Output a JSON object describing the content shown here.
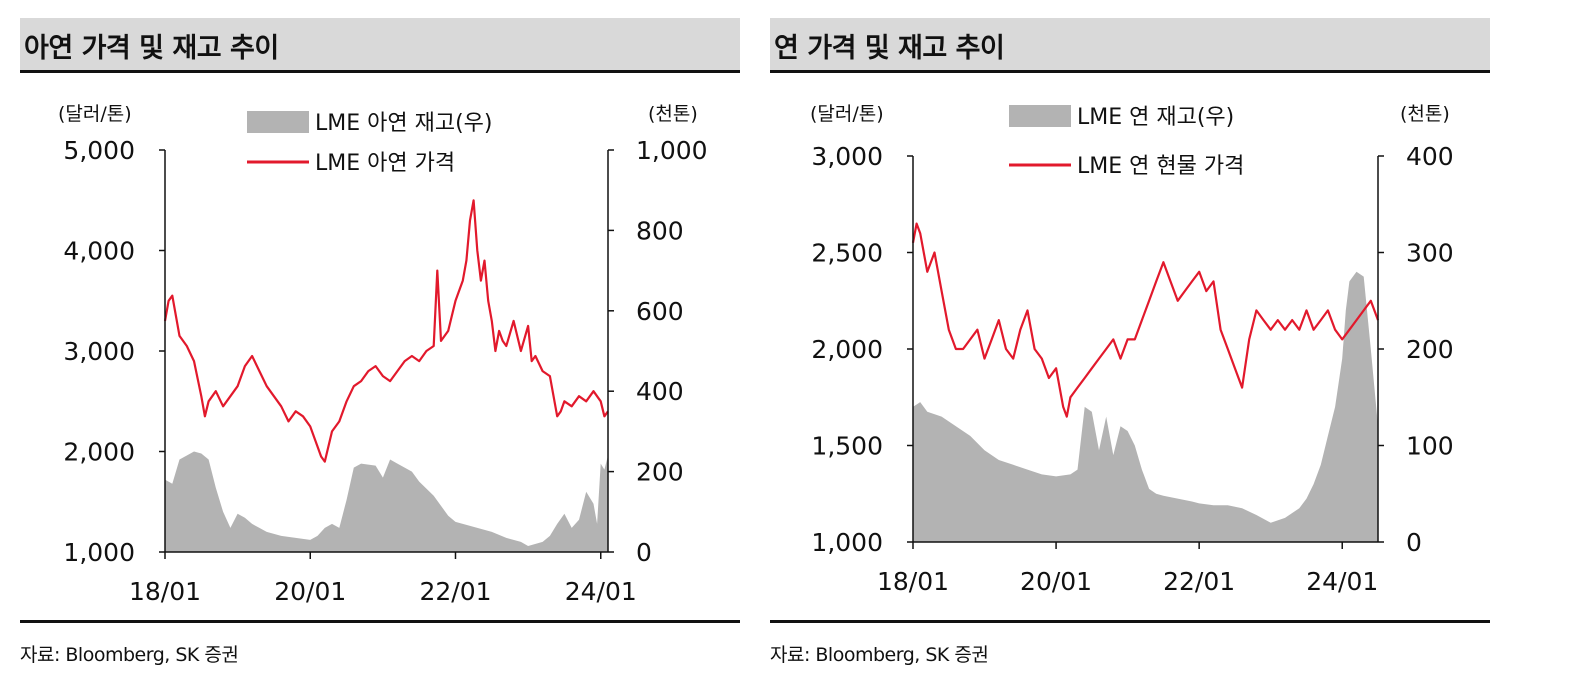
{
  "charts": [
    {
      "title": "아연 가격 및 재고 추이",
      "source": "자료: Bloomberg, SK 증권",
      "left_unit": "(달러/톤)",
      "right_unit": "(천톤)",
      "legend": {
        "stock": "LME 아연 재고(우)",
        "price": "LME 아연 가격"
      }
    },
    {
      "title": "연 가격 및 재고 추이",
      "source": "자료: Bloomberg, SK 증권",
      "left_unit": "(달러/톤)",
      "right_unit": "(천톤)",
      "legend": {
        "stock": "LME 연 재고(우)",
        "price": "LME 연 현물 가격"
      }
    }
  ],
  "colors": {
    "price_line": "#e2192c",
    "stock_area": "#b3b3b3",
    "axis": "#111111"
  },
  "chart_data": [
    {
      "type": "area",
      "title": "아연 가격 및 재고 추이",
      "x_ticks": [
        "18/01",
        "20/01",
        "22/01",
        "24/01"
      ],
      "x_tick_years": [
        2018,
        2020,
        2022,
        2024
      ],
      "x_range": [
        2018.0,
        2024.1
      ],
      "y_left": {
        "label": "(달러/톤)",
        "range": [
          1000,
          5000
        ],
        "ticks": [
          1000,
          2000,
          3000,
          4000,
          5000
        ],
        "tick_labels": [
          "1,000",
          "2,000",
          "3,000",
          "4,000",
          "5,000"
        ]
      },
      "y_right": {
        "label": "(천톤)",
        "range": [
          0,
          1000
        ],
        "ticks": [
          0,
          200,
          400,
          600,
          800,
          1000
        ],
        "tick_labels": [
          "0",
          "200",
          "400",
          "600",
          "800",
          "1,000"
        ]
      },
      "series": [
        {
          "name": "LME 아연 재고(우)",
          "type": "area",
          "axis": "right",
          "x": [
            2018.0,
            2018.1,
            2018.2,
            2018.3,
            2018.4,
            2018.5,
            2018.6,
            2018.7,
            2018.8,
            2018.9,
            2019.0,
            2019.1,
            2019.2,
            2019.3,
            2019.4,
            2019.6,
            2019.8,
            2020.0,
            2020.1,
            2020.2,
            2020.3,
            2020.4,
            2020.5,
            2020.6,
            2020.7,
            2020.9,
            2021.0,
            2021.1,
            2021.2,
            2021.4,
            2021.5,
            2021.7,
            2021.9,
            2022.0,
            2022.1,
            2022.3,
            2022.5,
            2022.7,
            2022.9,
            2023.0,
            2023.2,
            2023.3,
            2023.4,
            2023.5,
            2023.6,
            2023.7,
            2023.8,
            2023.9,
            2023.95,
            2024.0,
            2024.05,
            2024.1
          ],
          "values": [
            180,
            170,
            230,
            240,
            250,
            245,
            230,
            160,
            100,
            60,
            95,
            85,
            70,
            60,
            50,
            40,
            35,
            30,
            40,
            60,
            70,
            60,
            130,
            210,
            220,
            215,
            185,
            230,
            220,
            200,
            175,
            140,
            90,
            75,
            70,
            60,
            50,
            35,
            25,
            15,
            25,
            40,
            70,
            95,
            60,
            80,
            150,
            120,
            70,
            220,
            205,
            240
          ]
        },
        {
          "name": "LME 아연 가격",
          "type": "line",
          "axis": "left",
          "x": [
            2018.0,
            2018.05,
            2018.1,
            2018.15,
            2018.2,
            2018.3,
            2018.4,
            2018.5,
            2018.55,
            2018.6,
            2018.7,
            2018.8,
            2018.9,
            2019.0,
            2019.1,
            2019.2,
            2019.3,
            2019.4,
            2019.5,
            2019.6,
            2019.7,
            2019.8,
            2019.9,
            2020.0,
            2020.1,
            2020.15,
            2020.2,
            2020.25,
            2020.3,
            2020.4,
            2020.5,
            2020.6,
            2020.7,
            2020.8,
            2020.9,
            2021.0,
            2021.1,
            2021.2,
            2021.3,
            2021.4,
            2021.5,
            2021.6,
            2021.7,
            2021.75,
            2021.8,
            2021.9,
            2022.0,
            2022.1,
            2022.15,
            2022.2,
            2022.25,
            2022.3,
            2022.35,
            2022.4,
            2022.45,
            2022.5,
            2022.55,
            2022.6,
            2022.65,
            2022.7,
            2022.8,
            2022.9,
            2023.0,
            2023.05,
            2023.1,
            2023.2,
            2023.3,
            2023.4,
            2023.45,
            2023.5,
            2023.6,
            2023.7,
            2023.8,
            2023.9,
            2024.0,
            2024.05,
            2024.1
          ],
          "values": [
            3300,
            3500,
            3550,
            3350,
            3150,
            3050,
            2900,
            2550,
            2350,
            2500,
            2600,
            2450,
            2550,
            2650,
            2850,
            2950,
            2800,
            2650,
            2550,
            2450,
            2300,
            2400,
            2350,
            2250,
            2050,
            1950,
            1900,
            2050,
            2200,
            2300,
            2500,
            2650,
            2700,
            2800,
            2850,
            2750,
            2700,
            2800,
            2900,
            2950,
            2900,
            3000,
            3050,
            3800,
            3100,
            3200,
            3500,
            3700,
            3900,
            4300,
            4500,
            4000,
            3700,
            3900,
            3500,
            3300,
            3000,
            3200,
            3100,
            3050,
            3300,
            3000,
            3250,
            2900,
            2950,
            2800,
            2750,
            2350,
            2400,
            2500,
            2450,
            2550,
            2500,
            2600,
            2500,
            2350,
            2400
          ]
        }
      ]
    },
    {
      "type": "area",
      "title": "연 가격 및 재고 추이",
      "x_ticks": [
        "18/01",
        "20/01",
        "22/01",
        "24/01"
      ],
      "x_tick_years": [
        2018,
        2020,
        2022,
        2024
      ],
      "x_range": [
        2018.0,
        2024.5
      ],
      "y_left": {
        "label": "(달러/톤)",
        "range": [
          1000,
          3000
        ],
        "ticks": [
          1000,
          1500,
          2000,
          2500,
          3000
        ],
        "tick_labels": [
          "1,000",
          "1,500",
          "2,000",
          "2,500",
          "3,000"
        ]
      },
      "y_right": {
        "label": "(천톤)",
        "range": [
          0,
          400
        ],
        "ticks": [
          0,
          100,
          200,
          300,
          400
        ],
        "tick_labels": [
          "0",
          "100",
          "200",
          "300",
          "400"
        ]
      },
      "series": [
        {
          "name": "LME 연 재고(우)",
          "type": "area",
          "axis": "right",
          "x": [
            2018.0,
            2018.1,
            2018.2,
            2018.4,
            2018.6,
            2018.8,
            2019.0,
            2019.2,
            2019.4,
            2019.6,
            2019.8,
            2020.0,
            2020.2,
            2020.3,
            2020.4,
            2020.5,
            2020.6,
            2020.7,
            2020.8,
            2020.9,
            2021.0,
            2021.1,
            2021.2,
            2021.3,
            2021.4,
            2021.5,
            2021.7,
            2021.9,
            2022.0,
            2022.2,
            2022.4,
            2022.6,
            2022.8,
            2023.0,
            2023.2,
            2023.4,
            2023.5,
            2023.6,
            2023.7,
            2023.8,
            2023.9,
            2024.0,
            2024.05,
            2024.1,
            2024.2,
            2024.3,
            2024.4,
            2024.5
          ],
          "values": [
            140,
            145,
            135,
            130,
            120,
            110,
            95,
            85,
            80,
            75,
            70,
            68,
            70,
            75,
            140,
            135,
            95,
            130,
            90,
            120,
            115,
            100,
            75,
            55,
            50,
            48,
            45,
            42,
            40,
            38,
            38,
            35,
            28,
            20,
            25,
            35,
            45,
            60,
            80,
            110,
            140,
            190,
            240,
            270,
            280,
            275,
            200,
            120
          ]
        },
        {
          "name": "LME 연 현물 가격",
          "type": "line",
          "axis": "left",
          "x": [
            2018.0,
            2018.05,
            2018.1,
            2018.2,
            2018.3,
            2018.4,
            2018.5,
            2018.6,
            2018.7,
            2018.8,
            2018.9,
            2019.0,
            2019.1,
            2019.2,
            2019.3,
            2019.4,
            2019.5,
            2019.6,
            2019.7,
            2019.8,
            2019.9,
            2020.0,
            2020.1,
            2020.15,
            2020.2,
            2020.3,
            2020.4,
            2020.5,
            2020.6,
            2020.7,
            2020.8,
            2020.9,
            2021.0,
            2021.1,
            2021.2,
            2021.3,
            2021.4,
            2021.5,
            2021.6,
            2021.7,
            2021.8,
            2021.9,
            2022.0,
            2022.1,
            2022.2,
            2022.3,
            2022.4,
            2022.5,
            2022.6,
            2022.7,
            2022.8,
            2022.9,
            2023.0,
            2023.1,
            2023.2,
            2023.3,
            2023.4,
            2023.5,
            2023.6,
            2023.7,
            2023.8,
            2023.9,
            2024.0,
            2024.1,
            2024.2,
            2024.3,
            2024.4,
            2024.5
          ],
          "values": [
            2550,
            2650,
            2600,
            2400,
            2500,
            2300,
            2100,
            2000,
            2000,
            2050,
            2100,
            1950,
            2050,
            2150,
            2000,
            1950,
            2100,
            2200,
            2000,
            1950,
            1850,
            1900,
            1700,
            1650,
            1750,
            1800,
            1850,
            1900,
            1950,
            2000,
            2050,
            1950,
            2050,
            2050,
            2150,
            2250,
            2350,
            2450,
            2350,
            2250,
            2300,
            2350,
            2400,
            2300,
            2350,
            2100,
            2000,
            1900,
            1800,
            2050,
            2200,
            2150,
            2100,
            2150,
            2100,
            2150,
            2100,
            2200,
            2100,
            2150,
            2200,
            2100,
            2050,
            2100,
            2150,
            2200,
            2250,
            2150
          ]
        }
      ]
    }
  ]
}
